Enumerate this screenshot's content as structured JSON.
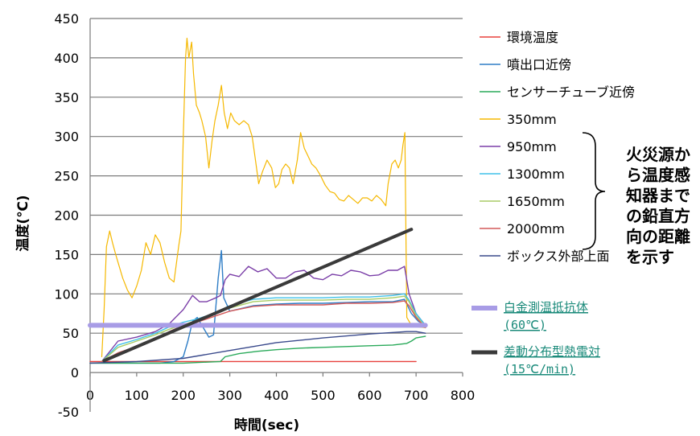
{
  "chart_data": {
    "type": "line",
    "xlabel": "時間(sec)",
    "ylabel": "温度(℃)",
    "xlim": [
      0,
      800
    ],
    "ylim": [
      -50,
      450
    ],
    "x_ticks": [
      0,
      100,
      200,
      300,
      400,
      500,
      600,
      700,
      800
    ],
    "y_ticks": [
      -50,
      0,
      50,
      100,
      150,
      200,
      250,
      300,
      350,
      400,
      450
    ],
    "grid": "horizontal",
    "legend_position": "right",
    "note": [
      "火災源か",
      "ら温度感",
      "知器まで",
      "の鉛直方",
      "向の距離",
      "を示す"
    ],
    "series": [
      {
        "name": "環境温度",
        "color": "#e8403c",
        "width": 1.4,
        "points": [
          [
            0,
            14
          ],
          [
            100,
            14
          ],
          [
            200,
            14
          ],
          [
            300,
            14
          ],
          [
            400,
            14
          ],
          [
            500,
            14
          ],
          [
            600,
            14
          ],
          [
            700,
            14
          ]
        ]
      },
      {
        "name": "噴出口近傍",
        "color": "#2e7dc6",
        "width": 1.4,
        "points": [
          [
            0,
            12
          ],
          [
            150,
            12
          ],
          [
            180,
            14
          ],
          [
            200,
            20
          ],
          [
            210,
            40
          ],
          [
            220,
            65
          ],
          [
            230,
            70
          ],
          [
            240,
            60
          ],
          [
            255,
            45
          ],
          [
            265,
            48
          ],
          [
            275,
            120
          ],
          [
            282,
            155
          ],
          [
            287,
            95
          ],
          [
            300,
            78
          ],
          [
            350,
            85
          ],
          [
            400,
            87
          ],
          [
            450,
            88
          ],
          [
            500,
            88
          ],
          [
            550,
            89
          ],
          [
            600,
            90
          ],
          [
            650,
            90
          ],
          [
            675,
            93
          ],
          [
            690,
            75
          ],
          [
            705,
            65
          ],
          [
            720,
            60
          ]
        ]
      },
      {
        "name": "センサーチューブ近傍",
        "color": "#2aaa5a",
        "width": 1.4,
        "points": [
          [
            0,
            12
          ],
          [
            200,
            12
          ],
          [
            280,
            14
          ],
          [
            290,
            20
          ],
          [
            320,
            24
          ],
          [
            360,
            27
          ],
          [
            400,
            29
          ],
          [
            450,
            31
          ],
          [
            500,
            32
          ],
          [
            550,
            33
          ],
          [
            600,
            34
          ],
          [
            650,
            35
          ],
          [
            680,
            37
          ],
          [
            690,
            40
          ],
          [
            700,
            44
          ],
          [
            720,
            46
          ]
        ]
      },
      {
        "name": "350mm",
        "color": "#f5b800",
        "width": 1.2,
        "points": [
          [
            25,
            20
          ],
          [
            30,
            80
          ],
          [
            35,
            160
          ],
          [
            42,
            180
          ],
          [
            48,
            165
          ],
          [
            55,
            150
          ],
          [
            60,
            140
          ],
          [
            70,
            120
          ],
          [
            80,
            105
          ],
          [
            90,
            95
          ],
          [
            100,
            110
          ],
          [
            110,
            130
          ],
          [
            120,
            165
          ],
          [
            130,
            150
          ],
          [
            140,
            175
          ],
          [
            150,
            165
          ],
          [
            160,
            140
          ],
          [
            170,
            120
          ],
          [
            180,
            115
          ],
          [
            190,
            160
          ],
          [
            195,
            180
          ],
          [
            200,
            300
          ],
          [
            205,
            400
          ],
          [
            208,
            425
          ],
          [
            212,
            400
          ],
          [
            218,
            420
          ],
          [
            222,
            380
          ],
          [
            228,
            340
          ],
          [
            235,
            330
          ],
          [
            240,
            320
          ],
          [
            248,
            300
          ],
          [
            255,
            260
          ],
          [
            262,
            295
          ],
          [
            268,
            320
          ],
          [
            275,
            340
          ],
          [
            282,
            365
          ],
          [
            288,
            330
          ],
          [
            295,
            310
          ],
          [
            302,
            330
          ],
          [
            310,
            320
          ],
          [
            320,
            315
          ],
          [
            330,
            320
          ],
          [
            340,
            315
          ],
          [
            348,
            300
          ],
          [
            355,
            270
          ],
          [
            362,
            240
          ],
          [
            370,
            255
          ],
          [
            380,
            270
          ],
          [
            390,
            260
          ],
          [
            398,
            235
          ],
          [
            405,
            240
          ],
          [
            412,
            258
          ],
          [
            420,
            265
          ],
          [
            428,
            260
          ],
          [
            436,
            240
          ],
          [
            445,
            270
          ],
          [
            452,
            305
          ],
          [
            460,
            285
          ],
          [
            468,
            275
          ],
          [
            476,
            265
          ],
          [
            485,
            260
          ],
          [
            495,
            250
          ],
          [
            505,
            238
          ],
          [
            515,
            230
          ],
          [
            525,
            228
          ],
          [
            535,
            220
          ],
          [
            545,
            218
          ],
          [
            555,
            225
          ],
          [
            565,
            220
          ],
          [
            575,
            215
          ],
          [
            585,
            222
          ],
          [
            595,
            222
          ],
          [
            605,
            218
          ],
          [
            615,
            225
          ],
          [
            625,
            220
          ],
          [
            635,
            212
          ],
          [
            640,
            240
          ],
          [
            648,
            265
          ],
          [
            655,
            270
          ],
          [
            662,
            260
          ],
          [
            668,
            270
          ],
          [
            672,
            290
          ],
          [
            676,
            305
          ],
          [
            680,
            70
          ],
          [
            690,
            60
          ],
          [
            705,
            58
          ],
          [
            720,
            57
          ]
        ]
      },
      {
        "name": "950mm",
        "color": "#7b3fa8",
        "width": 1.4,
        "points": [
          [
            25,
            14
          ],
          [
            60,
            40
          ],
          [
            100,
            45
          ],
          [
            140,
            52
          ],
          [
            170,
            62
          ],
          [
            200,
            80
          ],
          [
            220,
            98
          ],
          [
            235,
            90
          ],
          [
            250,
            90
          ],
          [
            270,
            95
          ],
          [
            280,
            98
          ],
          [
            290,
            118
          ],
          [
            300,
            125
          ],
          [
            320,
            122
          ],
          [
            340,
            135
          ],
          [
            360,
            128
          ],
          [
            380,
            132
          ],
          [
            400,
            120
          ],
          [
            420,
            120
          ],
          [
            440,
            128
          ],
          [
            460,
            130
          ],
          [
            480,
            120
          ],
          [
            500,
            118
          ],
          [
            520,
            125
          ],
          [
            540,
            123
          ],
          [
            560,
            130
          ],
          [
            580,
            128
          ],
          [
            600,
            123
          ],
          [
            620,
            124
          ],
          [
            640,
            130
          ],
          [
            660,
            130
          ],
          [
            675,
            135
          ],
          [
            685,
            100
          ],
          [
            700,
            75
          ],
          [
            720,
            60
          ]
        ]
      },
      {
        "name": "1300mm",
        "color": "#3fc0e8",
        "width": 1.4,
        "points": [
          [
            25,
            14
          ],
          [
            60,
            35
          ],
          [
            100,
            42
          ],
          [
            140,
            50
          ],
          [
            170,
            58
          ],
          [
            200,
            64
          ],
          [
            230,
            68
          ],
          [
            260,
            74
          ],
          [
            300,
            85
          ],
          [
            350,
            93
          ],
          [
            400,
            95
          ],
          [
            450,
            95
          ],
          [
            500,
            95
          ],
          [
            550,
            96
          ],
          [
            600,
            96
          ],
          [
            650,
            98
          ],
          [
            675,
            100
          ],
          [
            685,
            92
          ],
          [
            700,
            75
          ],
          [
            720,
            60
          ]
        ]
      },
      {
        "name": "1650mm",
        "color": "#a8cc66",
        "width": 1.4,
        "points": [
          [
            25,
            14
          ],
          [
            60,
            32
          ],
          [
            100,
            40
          ],
          [
            140,
            48
          ],
          [
            170,
            55
          ],
          [
            200,
            61
          ],
          [
            230,
            66
          ],
          [
            260,
            72
          ],
          [
            300,
            82
          ],
          [
            350,
            90
          ],
          [
            400,
            92
          ],
          [
            450,
            92
          ],
          [
            500,
            92
          ],
          [
            550,
            93
          ],
          [
            600,
            93
          ],
          [
            650,
            95
          ],
          [
            675,
            97
          ],
          [
            685,
            90
          ],
          [
            700,
            72
          ],
          [
            720,
            58
          ]
        ]
      },
      {
        "name": "2000mm",
        "color": "#d45a5a",
        "width": 1.4,
        "points": [
          [
            25,
            14
          ],
          [
            60,
            25
          ],
          [
            100,
            33
          ],
          [
            140,
            42
          ],
          [
            170,
            52
          ],
          [
            200,
            60
          ],
          [
            230,
            64
          ],
          [
            260,
            70
          ],
          [
            300,
            78
          ],
          [
            350,
            84
          ],
          [
            400,
            86
          ],
          [
            450,
            86
          ],
          [
            500,
            86
          ],
          [
            550,
            88
          ],
          [
            600,
            88
          ],
          [
            650,
            89
          ],
          [
            675,
            91
          ],
          [
            685,
            85
          ],
          [
            700,
            70
          ],
          [
            720,
            57
          ]
        ]
      },
      {
        "name": "ボックス外部上面",
        "color": "#3a4a8c",
        "width": 1.4,
        "points": [
          [
            0,
            12
          ],
          [
            100,
            14
          ],
          [
            200,
            18
          ],
          [
            300,
            28
          ],
          [
            400,
            38
          ],
          [
            500,
            44
          ],
          [
            600,
            49
          ],
          [
            680,
            52
          ],
          [
            700,
            52
          ],
          [
            720,
            50
          ]
        ]
      },
      {
        "name": "白金測温抵抗体\n(60℃)",
        "color": "#a89ce6",
        "width": 6,
        "points": [
          [
            0,
            60
          ],
          [
            720,
            60
          ]
        ]
      },
      {
        "name": "差動分布型熱電対\n(15℃/min)",
        "color": "#3a3a3a",
        "width": 4,
        "points": [
          [
            30,
            15
          ],
          [
            690,
            182
          ]
        ]
      }
    ]
  }
}
